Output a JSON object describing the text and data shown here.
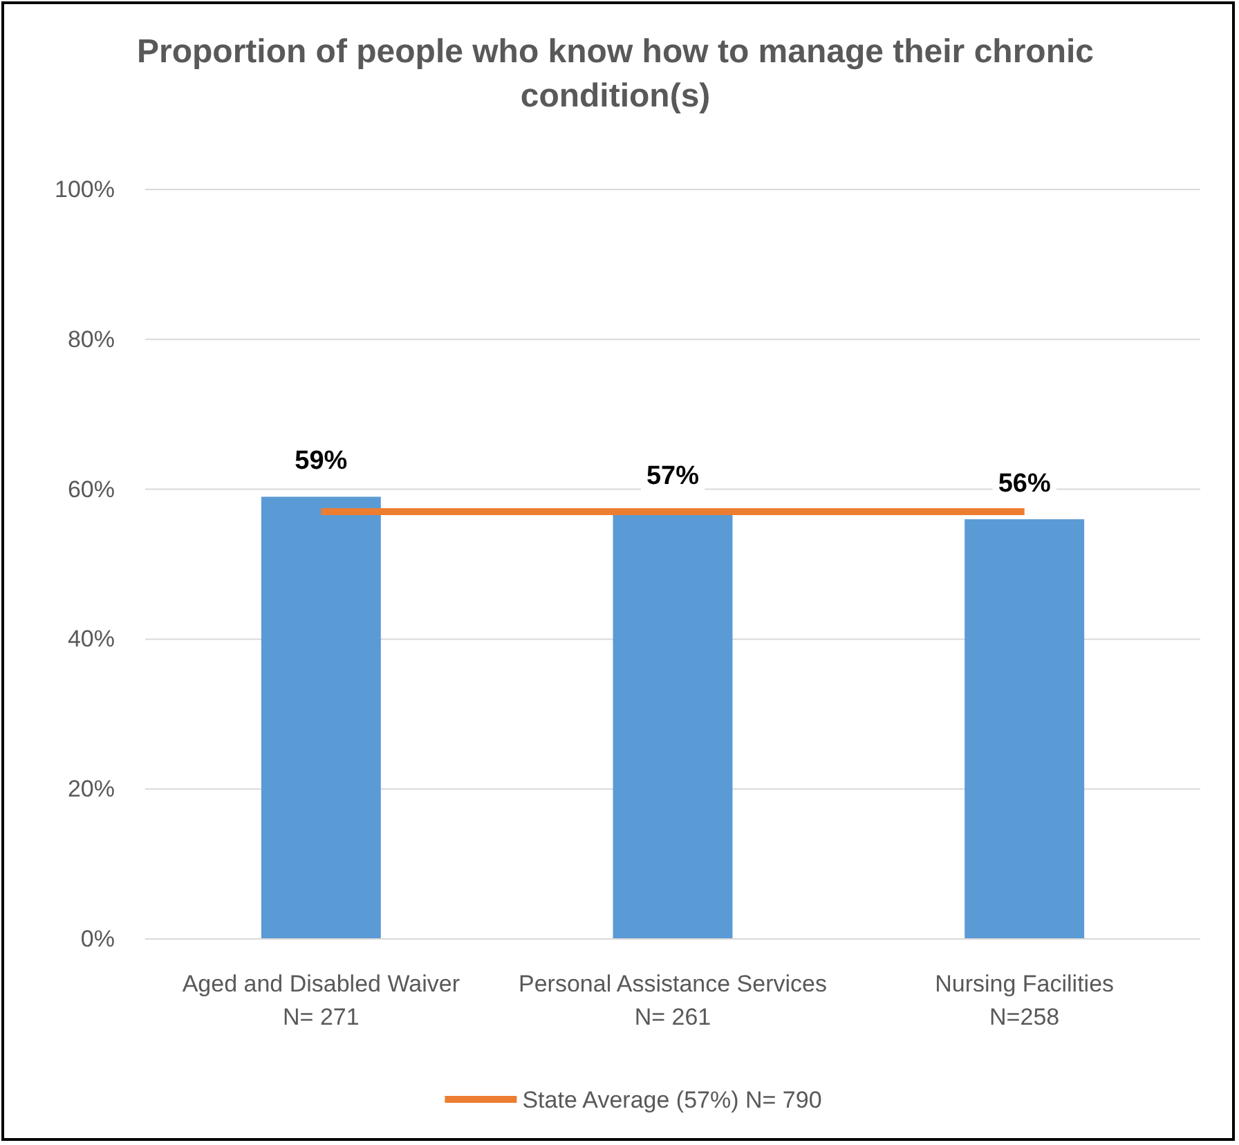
{
  "chart_data": {
    "type": "bar",
    "title": "Proportion of people who know how to manage their chronic condition(s)",
    "categories": [
      "Aged and Disabled Waiver\nN= 271",
      "Personal Assistance Services\nN= 261",
      "Nursing Facilities\nN=258"
    ],
    "values": [
      59,
      57,
      56
    ],
    "color": "#5b9bd5",
    "value_labels": [
      "59%",
      "57%",
      "56%"
    ],
    "ylim": [
      0,
      100
    ],
    "yticks": [
      {
        "value": 0,
        "label": "0%"
      },
      {
        "value": 20,
        "label": "20%"
      },
      {
        "value": 40,
        "label": "40%"
      },
      {
        "value": 60,
        "label": "60%"
      },
      {
        "value": 80,
        "label": "80%"
      },
      {
        "value": 100,
        "label": "100%"
      }
    ],
    "grid": "y",
    "ref_lines": [
      {
        "axis": "y",
        "value": 57,
        "label": "State Average (57%) N= 790",
        "color": "#ed7d31"
      }
    ],
    "legend": "bottom"
  }
}
